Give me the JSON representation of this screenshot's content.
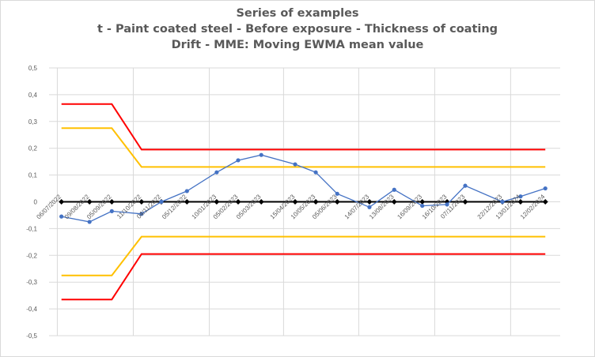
{
  "chart_data": {
    "type": "line",
    "title_lines": [
      "Series of examples",
      "t - Paint coated steel - Before exposure - Thickness of coating",
      "Drift - MME: Moving EWMA mean value"
    ],
    "xlabel": "",
    "ylabel": "",
    "ylim": [
      -0.5,
      0.5
    ],
    "y_ticks": [
      "0,5",
      "0,4",
      "0,3",
      "0,2",
      "0,1",
      "0",
      "-0,1",
      "-0,2",
      "-0,3",
      "-0,4",
      "-0,5"
    ],
    "y_tick_values": [
      0.5,
      0.4,
      0.3,
      0.2,
      0.1,
      0,
      -0.1,
      -0.2,
      -0.3,
      -0.4,
      -0.5
    ],
    "grid": true,
    "x_dates": [
      "2022-07-06",
      "2022-08-09",
      "2022-09-05",
      "2022-10-11",
      "2022-11-04",
      "2022-12-05",
      "2023-01-10",
      "2023-02-05",
      "2023-03-05",
      "2023-04-15",
      "2023-05-10",
      "2023-06-05",
      "2023-07-14",
      "2023-08-13",
      "2023-09-16",
      "2023-10-16",
      "2023-11-07",
      "2023-12-22",
      "2024-01-13",
      "2024-02-12"
    ],
    "x_tick_labels": [
      "06/07/2022",
      "09/08/2022",
      "05/09/2022",
      "11/10/2022",
      "04/11/2022",
      "05/12/2022",
      "10/01/2023",
      "05/02/2023",
      "05/03/2023",
      "15/04/2023",
      "10/05/2023",
      "05/06/2023",
      "14/07/2023",
      "13/08/2023",
      "16/09/2023",
      "16/10/2023",
      "07/11/2023",
      "22/12/2023",
      "13/01/2024",
      "12/02/2024"
    ],
    "x_range": [
      "2022-06-21",
      "2024-03-01"
    ],
    "vertical_gridlines": [
      "2022-07-01",
      "2022-10-01",
      "2023-01-01",
      "2023-04-01",
      "2023-07-01",
      "2023-10-01",
      "2024-01-01"
    ],
    "series": [
      {
        "role": "mme",
        "color": "#4472c4",
        "marker": "circle",
        "x": [
          "2022-07-06",
          "2022-08-09",
          "2022-09-05",
          "2022-10-11",
          "2022-11-04",
          "2022-12-05",
          "2023-01-10",
          "2023-02-05",
          "2023-03-05",
          "2023-04-15",
          "2023-05-10",
          "2023-06-05",
          "2023-07-14",
          "2023-08-13",
          "2023-09-16",
          "2023-10-16",
          "2023-11-07",
          "2023-12-22",
          "2024-01-13",
          "2024-02-12"
        ],
        "values": [
          -0.055,
          -0.075,
          -0.035,
          -0.045,
          0.0,
          0.04,
          0.11,
          0.155,
          0.175,
          0.14,
          0.11,
          0.03,
          -0.02,
          0.045,
          -0.015,
          -0.01,
          0.06,
          0.0,
          0.02,
          0.05
        ]
      },
      {
        "role": "zero",
        "color": "#000000",
        "marker": "diamond",
        "x": [
          "2022-07-06",
          "2022-08-09",
          "2022-09-05",
          "2022-10-11",
          "2022-11-04",
          "2022-12-05",
          "2023-01-10",
          "2023-02-05",
          "2023-03-05",
          "2023-04-15",
          "2023-05-10",
          "2023-06-05",
          "2023-07-14",
          "2023-08-13",
          "2023-09-16",
          "2023-10-16",
          "2023-11-07",
          "2023-12-22",
          "2024-01-13",
          "2024-02-12"
        ],
        "values": [
          0,
          0,
          0,
          0,
          0,
          0,
          0,
          0,
          0,
          0,
          0,
          0,
          0,
          0,
          0,
          0,
          0,
          0,
          0,
          0
        ]
      },
      {
        "role": "limit",
        "color": "#ffc000",
        "x": [
          "2022-07-06",
          "2022-09-05",
          "2022-10-11",
          "2024-02-12"
        ],
        "values": [
          0.275,
          0.275,
          0.13,
          0.13
        ]
      },
      {
        "role": "limit",
        "color": "#ffc000",
        "x": [
          "2022-07-06",
          "2022-09-05",
          "2022-10-11",
          "2024-02-12"
        ],
        "values": [
          -0.275,
          -0.275,
          -0.13,
          -0.13
        ]
      },
      {
        "role": "limit",
        "color": "#ff0000",
        "x": [
          "2022-07-06",
          "2022-09-05",
          "2022-10-11",
          "2024-02-12"
        ],
        "values": [
          0.365,
          0.365,
          0.195,
          0.195
        ]
      },
      {
        "role": "limit",
        "color": "#ff0000",
        "x": [
          "2022-07-06",
          "2022-09-05",
          "2022-10-11",
          "2024-02-12"
        ],
        "values": [
          -0.365,
          -0.365,
          -0.195,
          -0.195
        ]
      }
    ]
  }
}
